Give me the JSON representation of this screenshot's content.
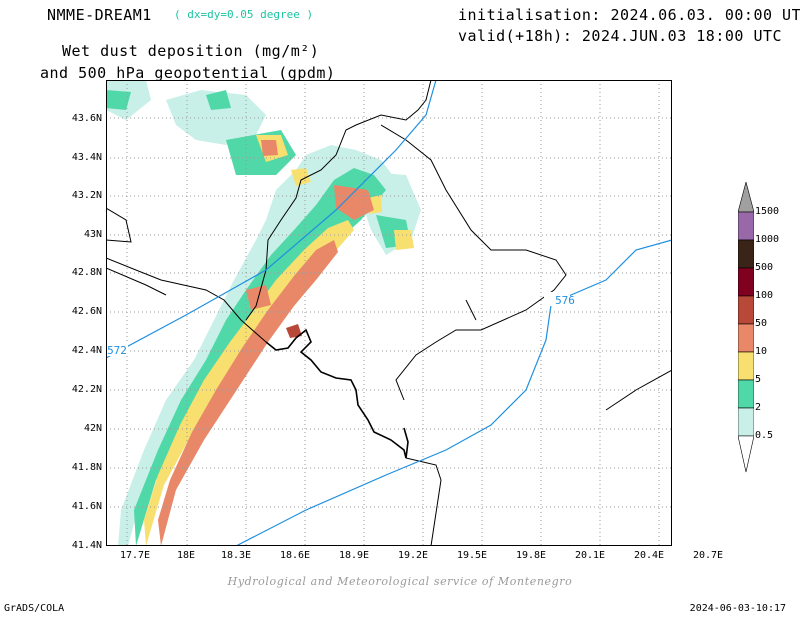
{
  "header": {
    "model": "NMME-DREAM1",
    "resolution": "( dx=dy=0.05 degree )",
    "title_line1": "Wet dust deposition (mg/m²)",
    "title_line2": "and 500 hPa geopotential (gpdm)",
    "initialisation": "initialisation: 2024.06.03. 00:00 UTC",
    "valid": "valid(+18h): 2024.JUN.03 18:00 UTC"
  },
  "axes": {
    "y_labels": [
      "43.6N",
      "43.4N",
      "43.2N",
      "43N",
      "42.8N",
      "42.6N",
      "42.4N",
      "42.2N",
      "42N",
      "41.8N",
      "41.6N",
      "41.4N"
    ],
    "x_labels": [
      "17.7E",
      "18E",
      "18.3E",
      "18.6E",
      "18.9E",
      "19.2E",
      "19.5E",
      "19.8E",
      "20.1E",
      "20.4E",
      "20.7E"
    ]
  },
  "contours": {
    "labels": [
      "572",
      "576"
    ],
    "color": "#1e90e0"
  },
  "legend": {
    "levels": [
      "0.5",
      "2",
      "5",
      "10",
      "50",
      "100",
      "500",
      "1000",
      "1500"
    ],
    "colors": [
      "#c8f0e8",
      "#50d8a8",
      "#f8e070",
      "#e88868",
      "#b84838",
      "#800020",
      "#3a2418",
      "#9868a8",
      "#a0a0a0"
    ]
  },
  "credit": "Hydrological and Meteorological service of Montenegro",
  "footer": {
    "left": "GrADS/COLA",
    "right": "2024-06-03-10:17"
  }
}
